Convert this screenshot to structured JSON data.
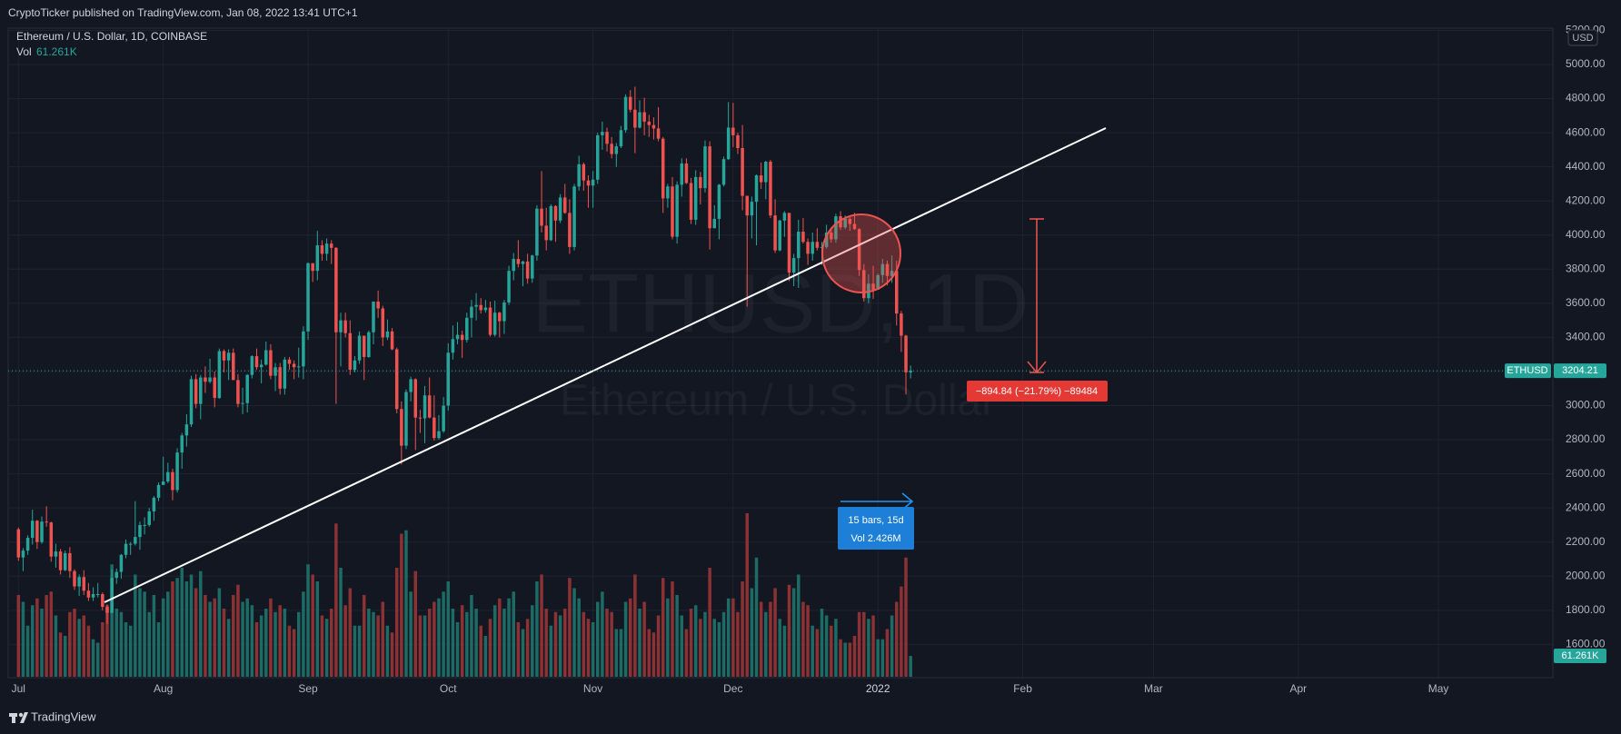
{
  "header": {
    "publisher": "CryptoTicker published on TradingView.com, Jan 08, 2022 13:41 UTC+1"
  },
  "chart_data": {
    "type": "candlestick",
    "title": "Ethereum / U.S. Dollar, 1D, COINBASE",
    "watermark": "ETHUSD, 1D",
    "watermark_subtitle": "Ethereum / U.S. Dollar",
    "symbol": "ETHUSD",
    "currency": "USD",
    "up_color": "#26a69a",
    "down_color": "#ef5350",
    "open": [
      2275,
      2110,
      2150,
      2225,
      2325,
      2200,
      2320,
      2315,
      2115,
      2145,
      2035,
      2135,
      2030,
      1940,
      1995,
      1915,
      1875,
      1895,
      1895,
      1820,
      1785,
      1990,
      2025,
      2125,
      2190,
      2190,
      2230,
      2300,
      2300,
      2380,
      2460,
      2535,
      2555,
      2610,
      2505,
      2725,
      2825,
      2890,
      3155,
      3010,
      3165,
      3140,
      3165,
      3045,
      3320,
      3265,
      3310,
      3150,
      3010,
      3015,
      3180,
      3290,
      3225,
      3240,
      3325,
      3175,
      3225,
      3100,
      3270,
      3245,
      3225,
      3230,
      3435,
      3835,
      3790,
      3940,
      3890,
      3950,
      3925,
      3430,
      3500,
      3425,
      3210,
      3265,
      3410,
      3285,
      3430,
      3610,
      3570,
      3400,
      3435,
      3330,
      2980,
      2765,
      3080,
      3155,
      2930,
      2925,
      3060,
      2930,
      2810,
      2850,
      3000,
      3310,
      3390,
      3415,
      3385,
      3515,
      3580,
      3590,
      3560,
      3575,
      3415,
      3545,
      3495,
      3605,
      3790,
      3860,
      3830,
      3845,
      3745,
      3880,
      4155,
      4055,
      3970,
      4170,
      4085,
      4220,
      4130,
      3930,
      4285,
      4415,
      4320,
      4290,
      4325,
      4585,
      4605,
      4535,
      4475,
      4520,
      4615,
      4810,
      4735,
      4630,
      4720,
      4665,
      4645,
      4625,
      4565,
      4215,
      4285,
      3990,
      4295,
      4420,
      4305,
      4090,
      4340,
      4275,
      4520,
      4040,
      4095,
      4295,
      4445,
      4630,
      4585,
      4510,
      4230,
      4115,
      4195,
      4350,
      4310,
      4430,
      4115,
      3910,
      4085,
      4130,
      3780,
      3865,
      4020,
      3960,
      3890,
      3960,
      3925,
      3930,
      4015,
      3975,
      4110,
      4045,
      4095,
      4065,
      4035,
      3795,
      3630,
      3715,
      3680,
      3765,
      3830,
      3760,
      3790,
      3540,
      3410,
      3195
    ],
    "high": [
      2285,
      2165,
      2240,
      2390,
      2330,
      2350,
      2410,
      2320,
      2190,
      2160,
      2150,
      2170,
      2040,
      2010,
      2035,
      1960,
      1935,
      1960,
      1905,
      1835,
      2040,
      2045,
      2130,
      2215,
      2200,
      2440,
      2320,
      2345,
      2400,
      2470,
      2550,
      2700,
      2665,
      2630,
      2750,
      2840,
      2950,
      3175,
      3185,
      3180,
      3230,
      3275,
      3200,
      3335,
      3330,
      3330,
      3335,
      3185,
      3105,
      3185,
      3295,
      3335,
      3270,
      3375,
      3360,
      3250,
      3250,
      3285,
      3285,
      3265,
      3340,
      3465,
      3840,
      3835,
      4025,
      3970,
      3980,
      3970,
      3930,
      3545,
      3545,
      3500,
      3290,
      3435,
      3410,
      3440,
      3610,
      3675,
      3585,
      3505,
      3455,
      3340,
      3025,
      3095,
      3170,
      3160,
      2975,
      3115,
      3165,
      3060,
      2945,
      3050,
      3365,
      3470,
      3490,
      3440,
      3545,
      3620,
      3660,
      3630,
      3620,
      3610,
      3615,
      3550,
      3620,
      3820,
      3895,
      3970,
      3850,
      3890,
      3885,
      4175,
      4375,
      4160,
      4180,
      4175,
      4240,
      4300,
      4210,
      4300,
      4465,
      4425,
      4350,
      4375,
      4600,
      4665,
      4630,
      4575,
      4540,
      4640,
      4825,
      4850,
      4870,
      4790,
      4805,
      4705,
      4690,
      4750,
      4575,
      4300,
      4340,
      4315,
      4450,
      4450,
      4335,
      4380,
      4370,
      4555,
      4550,
      4175,
      4300,
      4460,
      4780,
      4775,
      4600,
      4645,
      4230,
      4225,
      4355,
      4425,
      4435,
      4440,
      4210,
      4090,
      4140,
      4130,
      3890,
      4090,
      4100,
      3980,
      4015,
      4040,
      3960,
      4060,
      4045,
      4125,
      4140,
      4115,
      4105,
      4130,
      4040,
      3830,
      3770,
      3820,
      3775,
      3860,
      3850,
      3880,
      3850,
      3555,
      3415,
      3235
    ],
    "low": [
      2090,
      2030,
      2125,
      2185,
      2160,
      2190,
      2290,
      2085,
      2050,
      2010,
      2030,
      1990,
      1920,
      1885,
      1890,
      1855,
      1855,
      1875,
      1800,
      1720,
      1785,
      1955,
      1985,
      2105,
      2125,
      2180,
      2155,
      2245,
      2290,
      2325,
      2440,
      2535,
      2545,
      2445,
      2490,
      2630,
      2760,
      2875,
      2985,
      2920,
      3075,
      3130,
      2990,
      3040,
      3195,
      3150,
      3150,
      2990,
      2950,
      2960,
      3160,
      3210,
      3130,
      3235,
      3155,
      3085,
      3065,
      3065,
      3210,
      3155,
      3165,
      3155,
      3385,
      3725,
      3735,
      3850,
      3850,
      3830,
      3010,
      3230,
      3400,
      3180,
      3195,
      3245,
      3150,
      3280,
      3360,
      3515,
      3350,
      3385,
      3325,
      2955,
      2655,
      2745,
      3025,
      2740,
      2840,
      2780,
      2925,
      2795,
      2800,
      2840,
      2970,
      3270,
      3360,
      3280,
      3370,
      3400,
      3500,
      3540,
      3545,
      3405,
      3405,
      3400,
      3420,
      3590,
      3735,
      3810,
      3700,
      3715,
      3720,
      3850,
      4015,
      3910,
      3965,
      3960,
      4070,
      4125,
      3890,
      3910,
      4260,
      4260,
      4160,
      4160,
      4300,
      4500,
      4490,
      4450,
      4400,
      4510,
      4600,
      4720,
      4480,
      4625,
      4585,
      4575,
      4560,
      4550,
      4130,
      4160,
      3975,
      3950,
      4225,
      4300,
      4065,
      4060,
      4180,
      4250,
      3915,
      4040,
      3975,
      4285,
      4440,
      4515,
      4475,
      4145,
      3580,
      3980,
      3940,
      4270,
      4210,
      4100,
      3895,
      3905,
      3990,
      3730,
      3700,
      3690,
      3950,
      3825,
      3850,
      3910,
      3825,
      3920,
      3955,
      3955,
      4030,
      4035,
      4025,
      4030,
      3760,
      3610,
      3600,
      3625,
      3680,
      3720,
      3705,
      3720,
      3470,
      3315,
      3065,
      3160
    ],
    "close": [
      2110,
      2150,
      2225,
      2325,
      2200,
      2320,
      2315,
      2115,
      2145,
      2035,
      2135,
      2030,
      1940,
      1995,
      1915,
      1875,
      1895,
      1895,
      1820,
      1785,
      1990,
      2025,
      2125,
      2190,
      2190,
      2230,
      2300,
      2300,
      2380,
      2460,
      2535,
      2555,
      2610,
      2505,
      2725,
      2825,
      2890,
      3155,
      3010,
      3165,
      3140,
      3165,
      3045,
      3320,
      3265,
      3310,
      3150,
      3010,
      3015,
      3180,
      3290,
      3225,
      3240,
      3325,
      3175,
      3225,
      3100,
      3270,
      3245,
      3225,
      3230,
      3435,
      3835,
      3790,
      3940,
      3890,
      3950,
      3925,
      3430,
      3500,
      3425,
      3210,
      3265,
      3410,
      3285,
      3430,
      3610,
      3570,
      3400,
      3435,
      3330,
      2980,
      2765,
      3080,
      3155,
      2930,
      2925,
      3060,
      2930,
      2810,
      2850,
      3000,
      3310,
      3390,
      3415,
      3385,
      3515,
      3580,
      3590,
      3560,
      3575,
      3415,
      3545,
      3495,
      3605,
      3790,
      3860,
      3830,
      3845,
      3745,
      3880,
      4155,
      4055,
      3970,
      4170,
      4085,
      4220,
      4130,
      3930,
      4285,
      4415,
      4320,
      4290,
      4325,
      4585,
      4605,
      4535,
      4475,
      4520,
      4615,
      4810,
      4735,
      4630,
      4720,
      4665,
      4645,
      4625,
      4565,
      4215,
      4285,
      3990,
      4295,
      4420,
      4305,
      4090,
      4340,
      4275,
      4520,
      4040,
      4095,
      4295,
      4445,
      4630,
      4585,
      4510,
      4230,
      4115,
      4195,
      4350,
      4310,
      4430,
      4115,
      3910,
      4085,
      4130,
      3780,
      3865,
      4020,
      3960,
      3890,
      3960,
      3925,
      3930,
      4015,
      3975,
      4110,
      4045,
      4095,
      4065,
      4035,
      3795,
      3630,
      3715,
      3680,
      3765,
      3830,
      3760,
      3790,
      3540,
      3410,
      3195,
      3204.21
    ],
    "volume": {
      "name": "Vol",
      "up_color": "#1c6b65",
      "down_color": "#8c3134",
      "last_label": "61.261K",
      "values": [
        240000,
        220000,
        150000,
        210000,
        230000,
        200000,
        240000,
        250000,
        180000,
        130000,
        120000,
        190000,
        200000,
        170000,
        180000,
        150000,
        110000,
        100000,
        160000,
        210000,
        330000,
        200000,
        190000,
        160000,
        150000,
        300000,
        260000,
        250000,
        190000,
        240000,
        160000,
        230000,
        250000,
        280000,
        290000,
        320000,
        280000,
        300000,
        260000,
        310000,
        240000,
        220000,
        230000,
        260000,
        200000,
        170000,
        240000,
        270000,
        220000,
        230000,
        210000,
        160000,
        180000,
        200000,
        230000,
        190000,
        210000,
        200000,
        150000,
        140000,
        190000,
        250000,
        330000,
        300000,
        280000,
        180000,
        170000,
        200000,
        450000,
        320000,
        210000,
        260000,
        150000,
        150000,
        240000,
        200000,
        190000,
        180000,
        220000,
        150000,
        130000,
        320000,
        420000,
        430000,
        250000,
        310000,
        180000,
        180000,
        200000,
        220000,
        230000,
        250000,
        280000,
        200000,
        160000,
        210000,
        190000,
        240000,
        200000,
        150000,
        120000,
        170000,
        210000,
        230000,
        200000,
        230000,
        250000,
        160000,
        140000,
        170000,
        210000,
        280000,
        300000,
        200000,
        150000,
        190000,
        180000,
        200000,
        290000,
        260000,
        230000,
        190000,
        170000,
        160000,
        220000,
        250000,
        200000,
        190000,
        140000,
        140000,
        220000,
        230000,
        300000,
        200000,
        220000,
        140000,
        130000,
        180000,
        290000,
        230000,
        280000,
        240000,
        180000,
        140000,
        200000,
        210000,
        170000,
        190000,
        320000,
        170000,
        160000,
        190000,
        230000,
        230000,
        190000,
        280000,
        480000,
        260000,
        350000,
        220000,
        190000,
        220000,
        260000,
        170000,
        150000,
        270000,
        260000,
        300000,
        220000,
        210000,
        150000,
        140000,
        200000,
        180000,
        150000,
        170000,
        110000,
        100000,
        100000,
        120000,
        190000,
        190000,
        170000,
        180000,
        110000,
        110000,
        140000,
        180000,
        220000,
        265000,
        350000,
        61261
      ]
    },
    "xlim": [
      -2.2,
      328.5
    ],
    "ylim": [
      1405,
      5213
    ],
    "xticks": [
      {
        "value": 0,
        "label": "Jul"
      },
      {
        "value": 31,
        "label": "Aug"
      },
      {
        "value": 62,
        "label": "Sep"
      },
      {
        "value": 92,
        "label": "Oct"
      },
      {
        "value": 123,
        "label": "Nov"
      },
      {
        "value": 153,
        "label": "Dec"
      },
      {
        "value": 184,
        "label": "2022"
      },
      {
        "value": 215,
        "label": "Feb"
      },
      {
        "value": 243,
        "label": "Mar"
      },
      {
        "value": 274,
        "label": "Apr"
      },
      {
        "value": 304,
        "label": "May"
      }
    ],
    "yticks": [
      {
        "value": 1600,
        "label": "1600.00"
      },
      {
        "value": 1800,
        "label": "1800.00"
      },
      {
        "value": 2000,
        "label": "2000.00"
      },
      {
        "value": 2200,
        "label": "2200.00"
      },
      {
        "value": 2400,
        "label": "2400.00"
      },
      {
        "value": 2600,
        "label": "2600.00"
      },
      {
        "value": 2800,
        "label": "2800.00"
      },
      {
        "value": 3000,
        "label": "3000.00"
      },
      {
        "value": 3200,
        "label": "3200.00"
      },
      {
        "value": 3400,
        "label": "3400.00"
      },
      {
        "value": 3600,
        "label": "3600.00"
      },
      {
        "value": 3800,
        "label": "3800.00"
      },
      {
        "value": 4000,
        "label": "4000.00"
      },
      {
        "value": 4200,
        "label": "4200.00"
      },
      {
        "value": 4400,
        "label": "4400.00"
      },
      {
        "value": 4600,
        "label": "4600.00"
      },
      {
        "value": 4800,
        "label": "4800.00"
      },
      {
        "value": 5000,
        "label": "5000.00"
      },
      {
        "value": 5200,
        "label": "5200.00"
      }
    ],
    "grid": true,
    "annotations": {
      "price_range": "−894.84 (−21.79%) −89484",
      "bars_range": "15 bars, 15d",
      "bars_volume": "Vol 2.426M"
    }
  },
  "footer": {
    "brand": "TradingView"
  }
}
